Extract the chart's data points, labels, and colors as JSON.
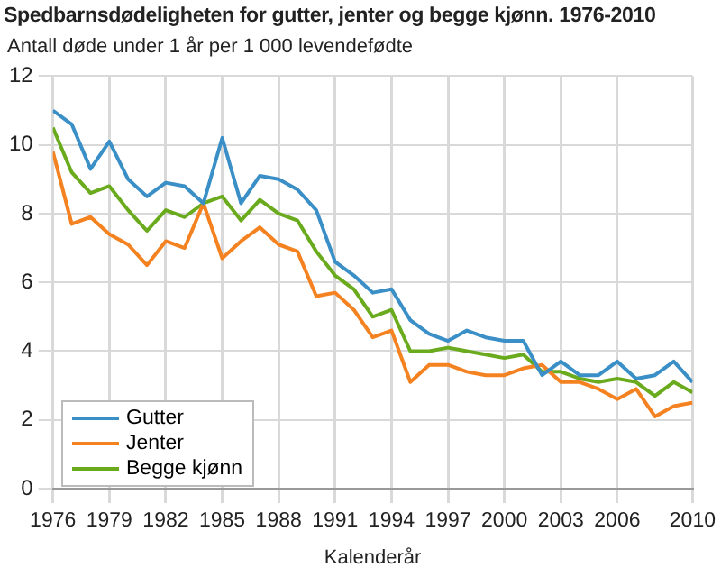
{
  "chart_data": {
    "type": "line",
    "title": "Spedbarnsdødeligheten for gutter, jenter og begge kjønn. 1976-2010",
    "ylabel": "Antall døde under 1 år per 1 000 levendefødte",
    "xlabel": "Kalenderår",
    "x": [
      1976,
      1977,
      1978,
      1979,
      1980,
      1981,
      1982,
      1983,
      1984,
      1985,
      1986,
      1987,
      1988,
      1989,
      1990,
      1991,
      1992,
      1993,
      1994,
      1995,
      1996,
      1997,
      1998,
      1999,
      2000,
      2001,
      2002,
      2003,
      2004,
      2005,
      2006,
      2007,
      2008,
      2009,
      2010
    ],
    "series": [
      {
        "name": "Gutter",
        "color": "#3a8fc7",
        "values": [
          11.0,
          10.6,
          9.3,
          10.1,
          9.0,
          8.5,
          8.9,
          8.8,
          8.3,
          10.2,
          8.3,
          9.1,
          9.0,
          8.7,
          8.1,
          6.6,
          6.2,
          5.7,
          5.8,
          4.9,
          4.5,
          4.3,
          4.6,
          4.4,
          4.3,
          4.3,
          3.3,
          3.7,
          3.3,
          3.3,
          3.7,
          3.2,
          3.3,
          3.7,
          3.1
        ]
      },
      {
        "name": "Jenter",
        "color": "#f58220",
        "values": [
          9.8,
          7.7,
          7.9,
          7.4,
          7.1,
          6.5,
          7.2,
          7.0,
          8.3,
          6.7,
          7.2,
          7.6,
          7.1,
          6.9,
          5.6,
          5.7,
          5.2,
          4.4,
          4.6,
          3.1,
          3.6,
          3.6,
          3.4,
          3.3,
          3.3,
          3.5,
          3.6,
          3.1,
          3.1,
          2.9,
          2.6,
          2.9,
          2.1,
          2.4,
          2.5
        ]
      },
      {
        "name": "Begge kjønn",
        "color": "#6aab1e",
        "values": [
          10.5,
          9.2,
          8.6,
          8.8,
          8.1,
          7.5,
          8.1,
          7.9,
          8.3,
          8.5,
          7.8,
          8.4,
          8.0,
          7.8,
          6.9,
          6.2,
          5.8,
          5.0,
          5.2,
          4.0,
          4.0,
          4.1,
          4.0,
          3.9,
          3.8,
          3.9,
          3.4,
          3.4,
          3.2,
          3.1,
          3.2,
          3.1,
          2.7,
          3.1,
          2.8
        ]
      }
    ],
    "xlim": [
      1976,
      2010
    ],
    "xticks": [
      1976,
      1979,
      1982,
      1985,
      1988,
      1991,
      1994,
      1997,
      2000,
      2003,
      2006,
      2010
    ],
    "ylim": [
      0,
      12
    ],
    "yticks": [
      0,
      2,
      4,
      6,
      8,
      10,
      12
    ],
    "grid": true,
    "legend": "bottom left",
    "marker": "none",
    "line_style": "solid"
  }
}
